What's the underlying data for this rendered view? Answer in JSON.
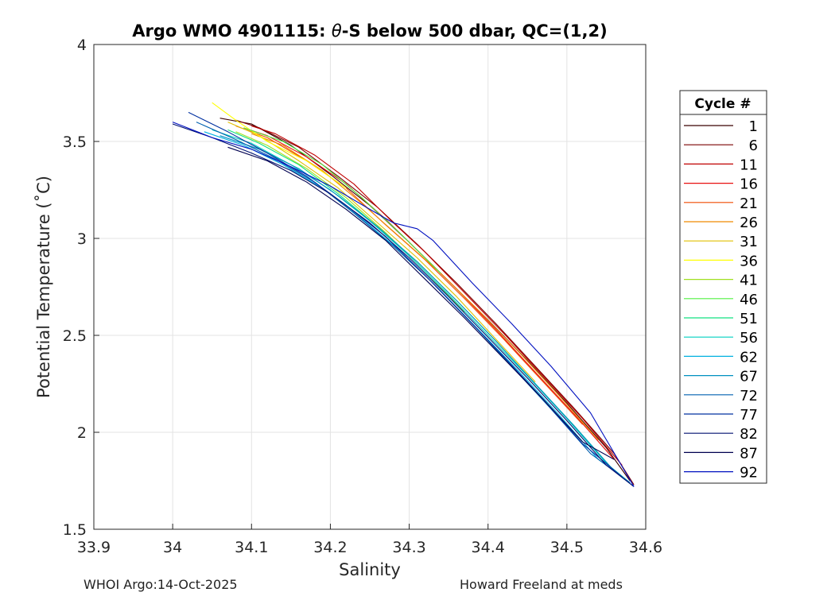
{
  "chart_data": {
    "type": "line",
    "title_prefix": "Argo WMO 4901115: ",
    "title_theta": "θ",
    "title_suffix": "-S below 500 dbar,  QC=(1,2)",
    "xlabel": "Salinity",
    "ylabel": "Potential Temperature (˚C)",
    "xlim": [
      33.9,
      34.6
    ],
    "ylim": [
      1.5,
      4
    ],
    "xticks": [
      33.9,
      34,
      34.1,
      34.2,
      34.3,
      34.4,
      34.5,
      34.6
    ],
    "xtick_labels": [
      "33.9",
      "34",
      "34.1",
      "34.2",
      "34.3",
      "34.4",
      "34.5",
      "34.6"
    ],
    "yticks": [
      1.5,
      2,
      2.5,
      3,
      3.5,
      4
    ],
    "ytick_labels": [
      "1.5",
      "2",
      "2.5",
      "3",
      "3.5",
      "4"
    ],
    "grid": true,
    "legend": {
      "title": "Cycle #",
      "placement": "outside-right",
      "entries": [
        {
          "label": "1",
          "color": "#3b0000"
        },
        {
          "label": "6",
          "color": "#7a0000"
        },
        {
          "label": "11",
          "color": "#c00000"
        },
        {
          "label": "16",
          "color": "#e81010"
        },
        {
          "label": "21",
          "color": "#f04a00"
        },
        {
          "label": "26",
          "color": "#f08a00"
        },
        {
          "label": "31",
          "color": "#e0c000"
        },
        {
          "label": "36",
          "color": "#ffff00"
        },
        {
          "label": "41",
          "color": "#a0e020"
        },
        {
          "label": "46",
          "color": "#50f040"
        },
        {
          "label": "51",
          "color": "#10e080"
        },
        {
          "label": "56",
          "color": "#00d0c0"
        },
        {
          "label": "62",
          "color": "#00b0e0"
        },
        {
          "label": "67",
          "color": "#0090c0"
        },
        {
          "label": "72",
          "color": "#0060b0"
        },
        {
          "label": "77",
          "color": "#0030a0"
        },
        {
          "label": "82",
          "color": "#001070"
        },
        {
          "label": "87",
          "color": "#000050"
        },
        {
          "label": "92",
          "color": "#0010c0"
        }
      ]
    },
    "series": [
      {
        "name": "1",
        "color": "#3b0000",
        "x": [
          34.06,
          34.1,
          34.15,
          34.2,
          34.25,
          34.3,
          34.35,
          34.4,
          34.45,
          34.5,
          34.55,
          34.58
        ],
        "y": [
          3.62,
          3.59,
          3.48,
          3.33,
          3.17,
          2.98,
          2.78,
          2.58,
          2.37,
          2.15,
          1.92,
          1.75
        ]
      },
      {
        "name": "6",
        "color": "#7a0000",
        "x": [
          34.08,
          34.11,
          34.16,
          34.21,
          34.26,
          34.31,
          34.36,
          34.41,
          34.46,
          34.51,
          34.56,
          34.585
        ],
        "y": [
          3.61,
          3.57,
          3.47,
          3.32,
          3.16,
          2.97,
          2.77,
          2.56,
          2.34,
          2.12,
          1.89,
          1.73
        ]
      },
      {
        "name": "11",
        "color": "#c00000",
        "x": [
          34.1,
          34.13,
          34.18,
          34.23,
          34.28,
          34.32,
          34.37,
          34.42,
          34.47,
          34.52,
          34.57
        ],
        "y": [
          3.58,
          3.54,
          3.43,
          3.28,
          3.08,
          2.93,
          2.72,
          2.51,
          2.29,
          2.07,
          1.83
        ]
      },
      {
        "name": "16",
        "color": "#e81010",
        "x": [
          34.09,
          34.12,
          34.17,
          34.22,
          34.27,
          34.31,
          34.36,
          34.41,
          34.46,
          34.51,
          34.56
        ],
        "y": [
          3.57,
          3.53,
          3.42,
          3.28,
          3.1,
          2.94,
          2.74,
          2.53,
          2.31,
          2.09,
          1.86
        ]
      },
      {
        "name": "21",
        "color": "#f04a00",
        "x": [
          34.08,
          34.12,
          34.17,
          34.22,
          34.27,
          34.32,
          34.37,
          34.42,
          34.47,
          34.52
        ],
        "y": [
          3.58,
          3.52,
          3.4,
          3.26,
          3.07,
          2.89,
          2.69,
          2.48,
          2.26,
          2.04
        ]
      },
      {
        "name": "26",
        "color": "#f08a00",
        "x": [
          34.1,
          34.14,
          34.19,
          34.24,
          34.29,
          34.34,
          34.39,
          34.44,
          34.49,
          34.54
        ],
        "y": [
          3.54,
          3.48,
          3.35,
          3.18,
          3.0,
          2.82,
          2.62,
          2.41,
          2.19,
          1.96
        ]
      },
      {
        "name": "31",
        "color": "#e0c000",
        "x": [
          34.07,
          34.11,
          34.16,
          34.21,
          34.26,
          34.31,
          34.36,
          34.41,
          34.46
        ],
        "y": [
          3.6,
          3.53,
          3.4,
          3.26,
          3.08,
          2.9,
          2.7,
          2.48,
          2.26
        ]
      },
      {
        "name": "36",
        "color": "#ffff00",
        "x": [
          34.05,
          34.08,
          34.12,
          34.17,
          34.22
        ],
        "y": [
          3.7,
          3.61,
          3.5,
          3.4,
          3.26
        ]
      },
      {
        "name": "41",
        "color": "#a0e020",
        "x": [
          34.08,
          34.12,
          34.17,
          34.22,
          34.27,
          34.32,
          34.37
        ],
        "y": [
          3.55,
          3.48,
          3.36,
          3.21,
          3.03,
          2.83,
          2.62
        ]
      },
      {
        "name": "46",
        "color": "#50f040",
        "x": [
          34.09,
          34.14,
          34.19,
          34.24,
          34.29,
          34.34
        ],
        "y": [
          3.57,
          3.5,
          3.38,
          3.21,
          3.02,
          2.82
        ]
      },
      {
        "name": "51",
        "color": "#10e080",
        "x": [
          34.07,
          34.11,
          34.16,
          34.21,
          34.26,
          34.31,
          34.36,
          34.41,
          34.46,
          34.51,
          34.56
        ],
        "y": [
          3.56,
          3.49,
          3.38,
          3.23,
          3.06,
          2.88,
          2.68,
          2.47,
          2.25,
          2.03,
          1.8
        ]
      },
      {
        "name": "56",
        "color": "#00d0c0",
        "x": [
          34.05,
          34.1,
          34.15,
          34.2,
          34.25,
          34.3,
          34.35,
          34.4,
          34.45,
          34.5,
          34.55,
          34.58
        ],
        "y": [
          3.56,
          3.49,
          3.38,
          3.25,
          3.09,
          2.91,
          2.71,
          2.5,
          2.29,
          2.07,
          1.84,
          1.74
        ]
      },
      {
        "name": "62",
        "color": "#00b0e0",
        "x": [
          34.04,
          34.09,
          34.14,
          34.19,
          34.24,
          34.29,
          34.34,
          34.39,
          34.44,
          34.49,
          34.54,
          34.58
        ],
        "y": [
          3.55,
          3.48,
          3.38,
          3.26,
          3.1,
          2.93,
          2.73,
          2.52,
          2.31,
          2.09,
          1.86,
          1.74
        ]
      },
      {
        "name": "67",
        "color": "#0090c0",
        "x": [
          34.06,
          34.11,
          34.16,
          34.21,
          34.26,
          34.31,
          34.36,
          34.41,
          34.46,
          34.51,
          34.56,
          34.585
        ],
        "y": [
          3.53,
          3.46,
          3.36,
          3.22,
          3.06,
          2.88,
          2.68,
          2.47,
          2.25,
          2.03,
          1.8,
          1.72
        ]
      },
      {
        "name": "72",
        "color": "#0060b0",
        "x": [
          34.03,
          34.08,
          34.13,
          34.18,
          34.23,
          34.28,
          34.33,
          34.38,
          34.43,
          34.48,
          34.53,
          34.58
        ],
        "y": [
          3.6,
          3.51,
          3.41,
          3.29,
          3.13,
          2.96,
          2.77,
          2.56,
          2.34,
          2.12,
          1.89,
          1.74
        ]
      },
      {
        "name": "77",
        "color": "#0030a0",
        "x": [
          34.02,
          34.07,
          34.12,
          34.17,
          34.22,
          34.27,
          34.32,
          34.37,
          34.42,
          34.47,
          34.52,
          34.57
        ],
        "y": [
          3.65,
          3.55,
          3.44,
          3.32,
          3.17,
          3.01,
          2.81,
          2.6,
          2.39,
          2.17,
          1.94,
          1.77
        ]
      },
      {
        "name": "82",
        "color": "#001070",
        "x": [
          34.0,
          34.05,
          34.1,
          34.15,
          34.2,
          34.25,
          34.3,
          34.35,
          34.4,
          34.45,
          34.5,
          34.55,
          34.585
        ],
        "y": [
          3.59,
          3.52,
          3.44,
          3.35,
          3.23,
          3.08,
          2.9,
          2.7,
          2.49,
          2.28,
          2.06,
          1.83,
          1.72
        ]
      },
      {
        "name": "87",
        "color": "#000050",
        "x": [
          34.07,
          34.12,
          34.17,
          34.22,
          34.27,
          34.32,
          34.37,
          34.42,
          34.47,
          34.52,
          34.56
        ],
        "y": [
          3.47,
          3.4,
          3.29,
          3.15,
          2.99,
          2.79,
          2.59,
          2.38,
          2.17,
          1.95,
          1.86
        ]
      },
      {
        "name": "92",
        "color": "#0010c0",
        "x": [
          34.0,
          34.05,
          34.1,
          34.15,
          34.2,
          34.25,
          34.28,
          34.31,
          34.33,
          34.38,
          34.43,
          34.48,
          34.53,
          34.585
        ],
        "y": [
          3.6,
          3.52,
          3.46,
          3.37,
          3.27,
          3.15,
          3.08,
          3.05,
          2.99,
          2.77,
          2.56,
          2.34,
          2.1,
          1.72
        ]
      }
    ]
  },
  "footer": {
    "left": "WHOI Argo:14-Oct-2025",
    "right": "Howard Freeland at meds"
  }
}
